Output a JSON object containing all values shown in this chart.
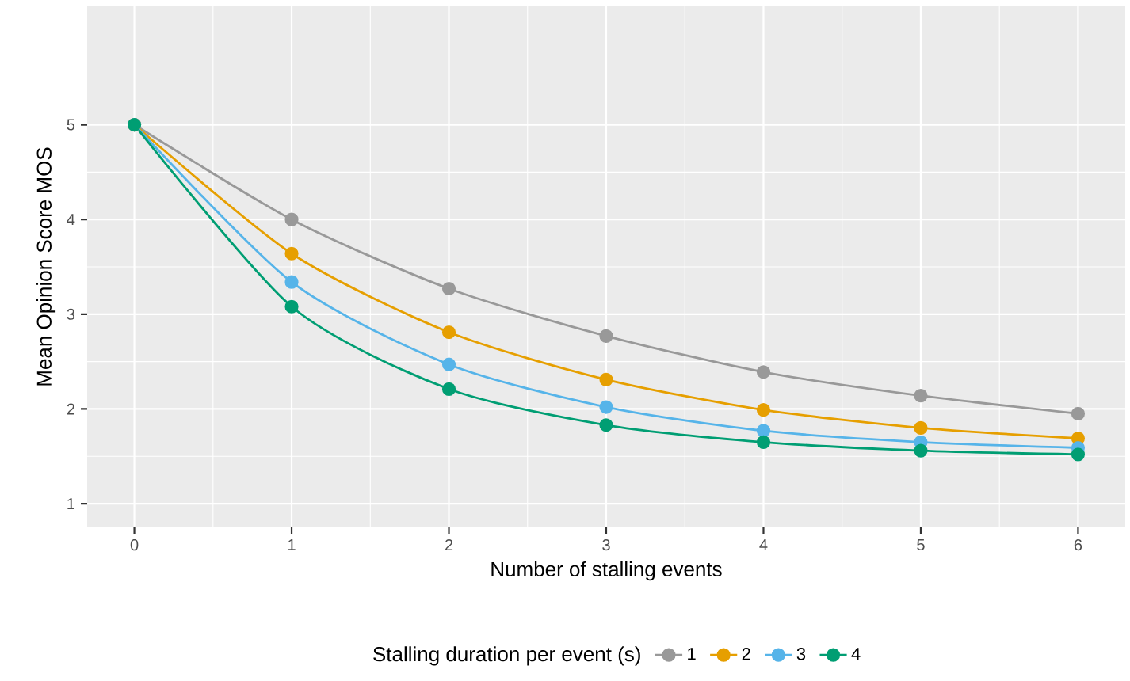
{
  "chart_data": {
    "type": "line",
    "xlabel": "Number of stalling events",
    "ylabel": "Mean Opinion Score MOS",
    "legend_title": "Stalling duration per event (s)",
    "x": [
      0,
      1,
      2,
      3,
      4,
      5,
      6
    ],
    "series": [
      {
        "name": "1",
        "color": "#999999",
        "values": [
          5,
          4.0,
          3.27,
          2.77,
          2.39,
          2.14,
          1.95
        ]
      },
      {
        "name": "2",
        "color": "#e69f00",
        "values": [
          5,
          3.64,
          2.81,
          2.31,
          1.99,
          1.8,
          1.69
        ]
      },
      {
        "name": "3",
        "color": "#56b4e9",
        "values": [
          5,
          3.34,
          2.47,
          2.02,
          1.77,
          1.65,
          1.59
        ]
      },
      {
        "name": "4",
        "color": "#009e73",
        "values": [
          5,
          3.08,
          2.21,
          1.83,
          1.65,
          1.56,
          1.52
        ]
      }
    ],
    "xlim": [
      -0.3,
      6.3
    ],
    "ylim": [
      0.75,
      6.25
    ],
    "xticks": [
      0,
      1,
      2,
      3,
      4,
      5,
      6
    ],
    "yticks": [
      1,
      2,
      3,
      4,
      5
    ],
    "grid": true,
    "legend": "bottom",
    "marker": "circle",
    "line_style": "solid"
  }
}
